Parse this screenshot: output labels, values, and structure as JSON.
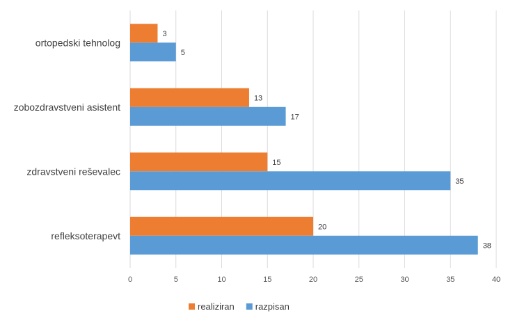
{
  "colors": {
    "realiziran": "#ED7D31",
    "razpisan": "#5B9BD5",
    "grid": "#D9D9D9"
  },
  "chart_data": {
    "type": "bar",
    "orientation": "horizontal",
    "categories": [
      "ortopedski tehnolog",
      "zobozdravstveni asistent",
      "zdravstveni reševalec",
      "refleksoterapevt"
    ],
    "series": [
      {
        "name": "realiziran",
        "values": [
          3,
          13,
          15,
          20
        ]
      },
      {
        "name": "razpisan",
        "values": [
          5,
          17,
          35,
          38
        ]
      }
    ],
    "xlim": [
      0,
      40
    ],
    "xticks": [
      0,
      5,
      10,
      15,
      20,
      25,
      30,
      35,
      40
    ],
    "title": "",
    "xlabel": "",
    "ylabel": "",
    "grid": true,
    "legend_position": "bottom"
  }
}
